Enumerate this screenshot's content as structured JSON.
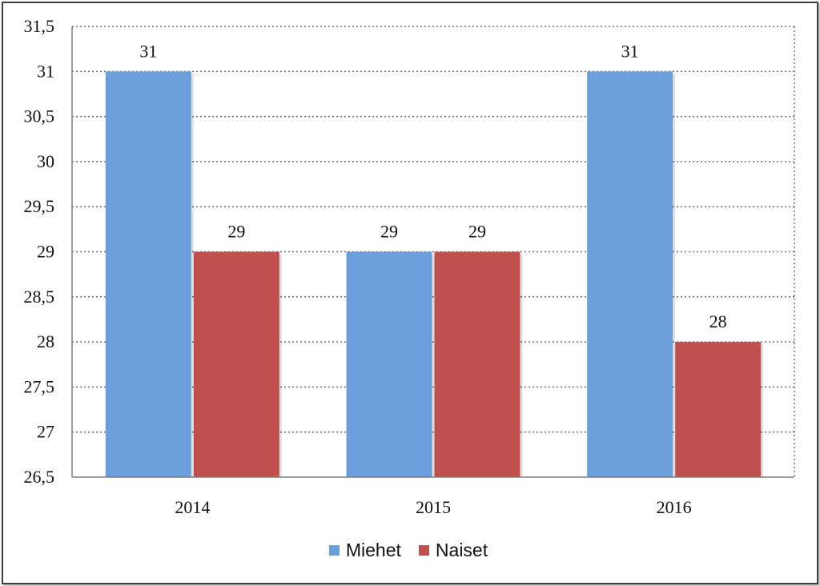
{
  "chart_data": {
    "type": "bar",
    "categories": [
      "2014",
      "2015",
      "2016"
    ],
    "series": [
      {
        "name": "Miehet",
        "values": [
          31,
          29,
          31
        ],
        "color": "#6a9fdb"
      },
      {
        "name": "Naiset",
        "values": [
          29,
          29,
          28
        ],
        "color": "#c0504d"
      }
    ],
    "ylim": [
      26.5,
      31.5
    ],
    "yticks": [
      "26,5",
      "27",
      "27,5",
      "28",
      "28,5",
      "29",
      "29,5",
      "30",
      "30,5",
      "31",
      "31,5"
    ],
    "data_labels": [
      [
        "31",
        "29",
        "31"
      ],
      [
        "29",
        "29",
        "28"
      ]
    ],
    "grid": "dotted-horizontal",
    "legend_position": "bottom"
  }
}
